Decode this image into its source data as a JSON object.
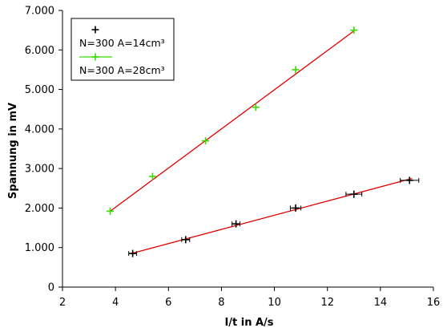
{
  "chart_data": {
    "type": "scatter",
    "xlabel": "I/t in A/s",
    "ylabel": "Spannung in mV",
    "xlim": [
      2,
      16
    ],
    "ylim": [
      0,
      7000
    ],
    "x_ticks": [
      2,
      4,
      6,
      8,
      10,
      12,
      14,
      16
    ],
    "x_tick_labels": [
      "2",
      "4",
      "6",
      "8",
      "10",
      "12",
      "14",
      "16"
    ],
    "y_ticks": [
      0,
      1000,
      2000,
      3000,
      4000,
      5000,
      6000,
      7000
    ],
    "y_tick_labels": [
      "0",
      "1.000",
      "2.000",
      "3.000",
      "4.000",
      "5.000",
      "6.000",
      "7.000"
    ],
    "grid": false,
    "legend_position": "top-left",
    "fit_line_color": "#e00000",
    "series": [
      {
        "name": "N=300 A=14cm³",
        "color": "#000000",
        "marker": "plus",
        "x": [
          4.65,
          6.65,
          8.55,
          10.8,
          13.0,
          15.1
        ],
        "y": [
          850,
          1200,
          1600,
          2000,
          2350,
          2700
        ],
        "x_error": [
          0.15,
          0.15,
          0.15,
          0.2,
          0.3,
          0.35
        ],
        "fit": {
          "x": [
            4.6,
            15.2
          ],
          "y": [
            850,
            2750
          ]
        }
      },
      {
        "name": "N=300 A=28cm³",
        "color": "#33dd00",
        "marker": "plus",
        "x": [
          3.8,
          5.4,
          7.4,
          9.3,
          10.8,
          13.0
        ],
        "y": [
          1920,
          2800,
          3700,
          4550,
          5500,
          6500
        ],
        "x_error": [
          0.0,
          0.0,
          0.0,
          0.0,
          0.0,
          0.0
        ],
        "fit": {
          "x": [
            3.8,
            13.0
          ],
          "y": [
            1920,
            6480
          ]
        }
      }
    ]
  }
}
